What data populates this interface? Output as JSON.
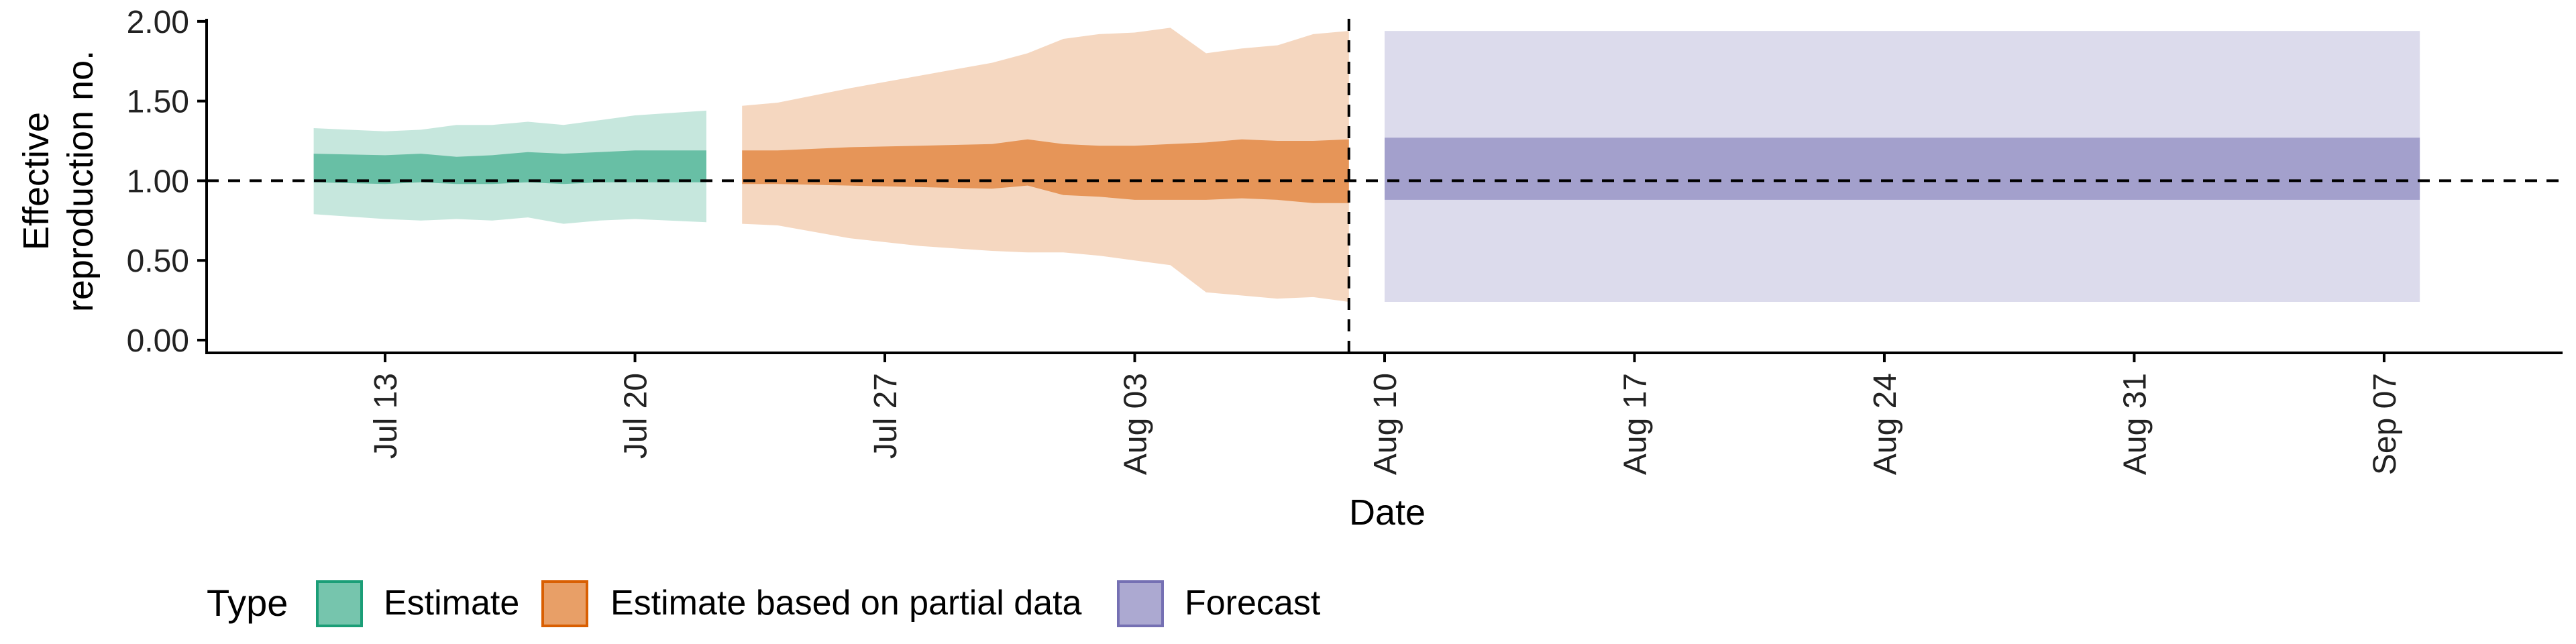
{
  "chart_data": {
    "type": "area",
    "xlabel": "Date",
    "ylabel_lines": [
      "Effective",
      "reproduction no."
    ],
    "y_ticks": [
      "0.00",
      "0.50",
      "1.00",
      "1.50",
      "2.00"
    ],
    "ylim": [
      -0.08,
      2.05
    ],
    "x_tick_labels": [
      "Jul 13",
      "Jul 20",
      "Jul 27",
      "Aug 03",
      "Aug 10",
      "Aug 17",
      "Aug 24",
      "Aug 31",
      "Sep 07"
    ],
    "x_tick_dates": [
      "2020-07-13",
      "2020-07-20",
      "2020-07-27",
      "2020-08-03",
      "2020-08-10",
      "2020-08-17",
      "2020-08-24",
      "2020-08-31",
      "2020-09-07"
    ],
    "xlim": [
      "2020-07-08",
      "2020-09-12"
    ],
    "reference_line_y": 1.0,
    "vertical_line_date": "2020-08-09",
    "grid": false,
    "legend": {
      "title": "Type",
      "position": "bottom",
      "items": [
        "Estimate",
        "Estimate based on partial data",
        "Forecast"
      ]
    },
    "series": [
      {
        "name": "Estimate",
        "color": "#1b9e77",
        "points": [
          {
            "date": "2020-07-11",
            "lower90": 0.79,
            "upper90": 1.33,
            "lower50": 0.99,
            "upper50": 1.17
          },
          {
            "date": "2020-07-13",
            "lower90": 0.76,
            "upper90": 1.31,
            "lower50": 0.98,
            "upper50": 1.16
          },
          {
            "date": "2020-07-14",
            "lower90": 0.75,
            "upper90": 1.32,
            "lower50": 0.99,
            "upper50": 1.17
          },
          {
            "date": "2020-07-15",
            "lower90": 0.76,
            "upper90": 1.35,
            "lower50": 0.98,
            "upper50": 1.15
          },
          {
            "date": "2020-07-16",
            "lower90": 0.75,
            "upper90": 1.35,
            "lower50": 0.98,
            "upper50": 1.16
          },
          {
            "date": "2020-07-17",
            "lower90": 0.77,
            "upper90": 1.37,
            "lower50": 0.99,
            "upper50": 1.18
          },
          {
            "date": "2020-07-18",
            "lower90": 0.73,
            "upper90": 1.35,
            "lower50": 0.98,
            "upper50": 1.17
          },
          {
            "date": "2020-07-19",
            "lower90": 0.75,
            "upper90": 1.38,
            "lower50": 0.99,
            "upper50": 1.18
          },
          {
            "date": "2020-07-20",
            "lower90": 0.76,
            "upper90": 1.41,
            "lower50": 0.99,
            "upper50": 1.19
          },
          {
            "date": "2020-07-22",
            "lower90": 0.74,
            "upper90": 1.44,
            "lower50": 0.99,
            "upper50": 1.19
          }
        ]
      },
      {
        "name": "Estimate based on partial data",
        "color": "#d95f02",
        "points": [
          {
            "date": "2020-07-23",
            "lower90": 0.73,
            "upper90": 1.47,
            "lower50": 0.98,
            "upper50": 1.19
          },
          {
            "date": "2020-07-24",
            "lower90": 0.72,
            "upper90": 1.49,
            "lower50": 0.98,
            "upper50": 1.19
          },
          {
            "date": "2020-07-26",
            "lower90": 0.64,
            "upper90": 1.58,
            "lower50": 0.97,
            "upper50": 1.21
          },
          {
            "date": "2020-07-28",
            "lower90": 0.59,
            "upper90": 1.66,
            "lower50": 0.96,
            "upper50": 1.22
          },
          {
            "date": "2020-07-30",
            "lower90": 0.56,
            "upper90": 1.74,
            "lower50": 0.95,
            "upper50": 1.23
          },
          {
            "date": "2020-07-31",
            "lower90": 0.55,
            "upper90": 1.8,
            "lower50": 0.97,
            "upper50": 1.26
          },
          {
            "date": "2020-08-01",
            "lower90": 0.55,
            "upper90": 1.89,
            "lower50": 0.91,
            "upper50": 1.23
          },
          {
            "date": "2020-08-02",
            "lower90": 0.53,
            "upper90": 1.92,
            "lower50": 0.9,
            "upper50": 1.22
          },
          {
            "date": "2020-08-03",
            "lower90": 0.5,
            "upper90": 1.93,
            "lower50": 0.88,
            "upper50": 1.22
          },
          {
            "date": "2020-08-04",
            "lower90": 0.47,
            "upper90": 1.96,
            "lower50": 0.88,
            "upper50": 1.23
          },
          {
            "date": "2020-08-05",
            "lower90": 0.3,
            "upper90": 1.8,
            "lower50": 0.88,
            "upper50": 1.24
          },
          {
            "date": "2020-08-06",
            "lower90": 0.28,
            "upper90": 1.83,
            "lower50": 0.89,
            "upper50": 1.26
          },
          {
            "date": "2020-08-07",
            "lower90": 0.26,
            "upper90": 1.85,
            "lower50": 0.88,
            "upper50": 1.25
          },
          {
            "date": "2020-08-08",
            "lower90": 0.27,
            "upper90": 1.92,
            "lower50": 0.86,
            "upper50": 1.25
          },
          {
            "date": "2020-08-09",
            "lower90": 0.24,
            "upper90": 1.94,
            "lower50": 0.86,
            "upper50": 1.26
          }
        ]
      },
      {
        "name": "Forecast",
        "color": "#7570b3",
        "points": [
          {
            "date": "2020-08-10",
            "lower90": 0.24,
            "upper90": 1.94,
            "lower50": 0.88,
            "upper50": 1.27
          },
          {
            "date": "2020-09-08",
            "lower90": 0.24,
            "upper90": 1.94,
            "lower50": 0.88,
            "upper50": 1.27
          }
        ]
      }
    ]
  }
}
